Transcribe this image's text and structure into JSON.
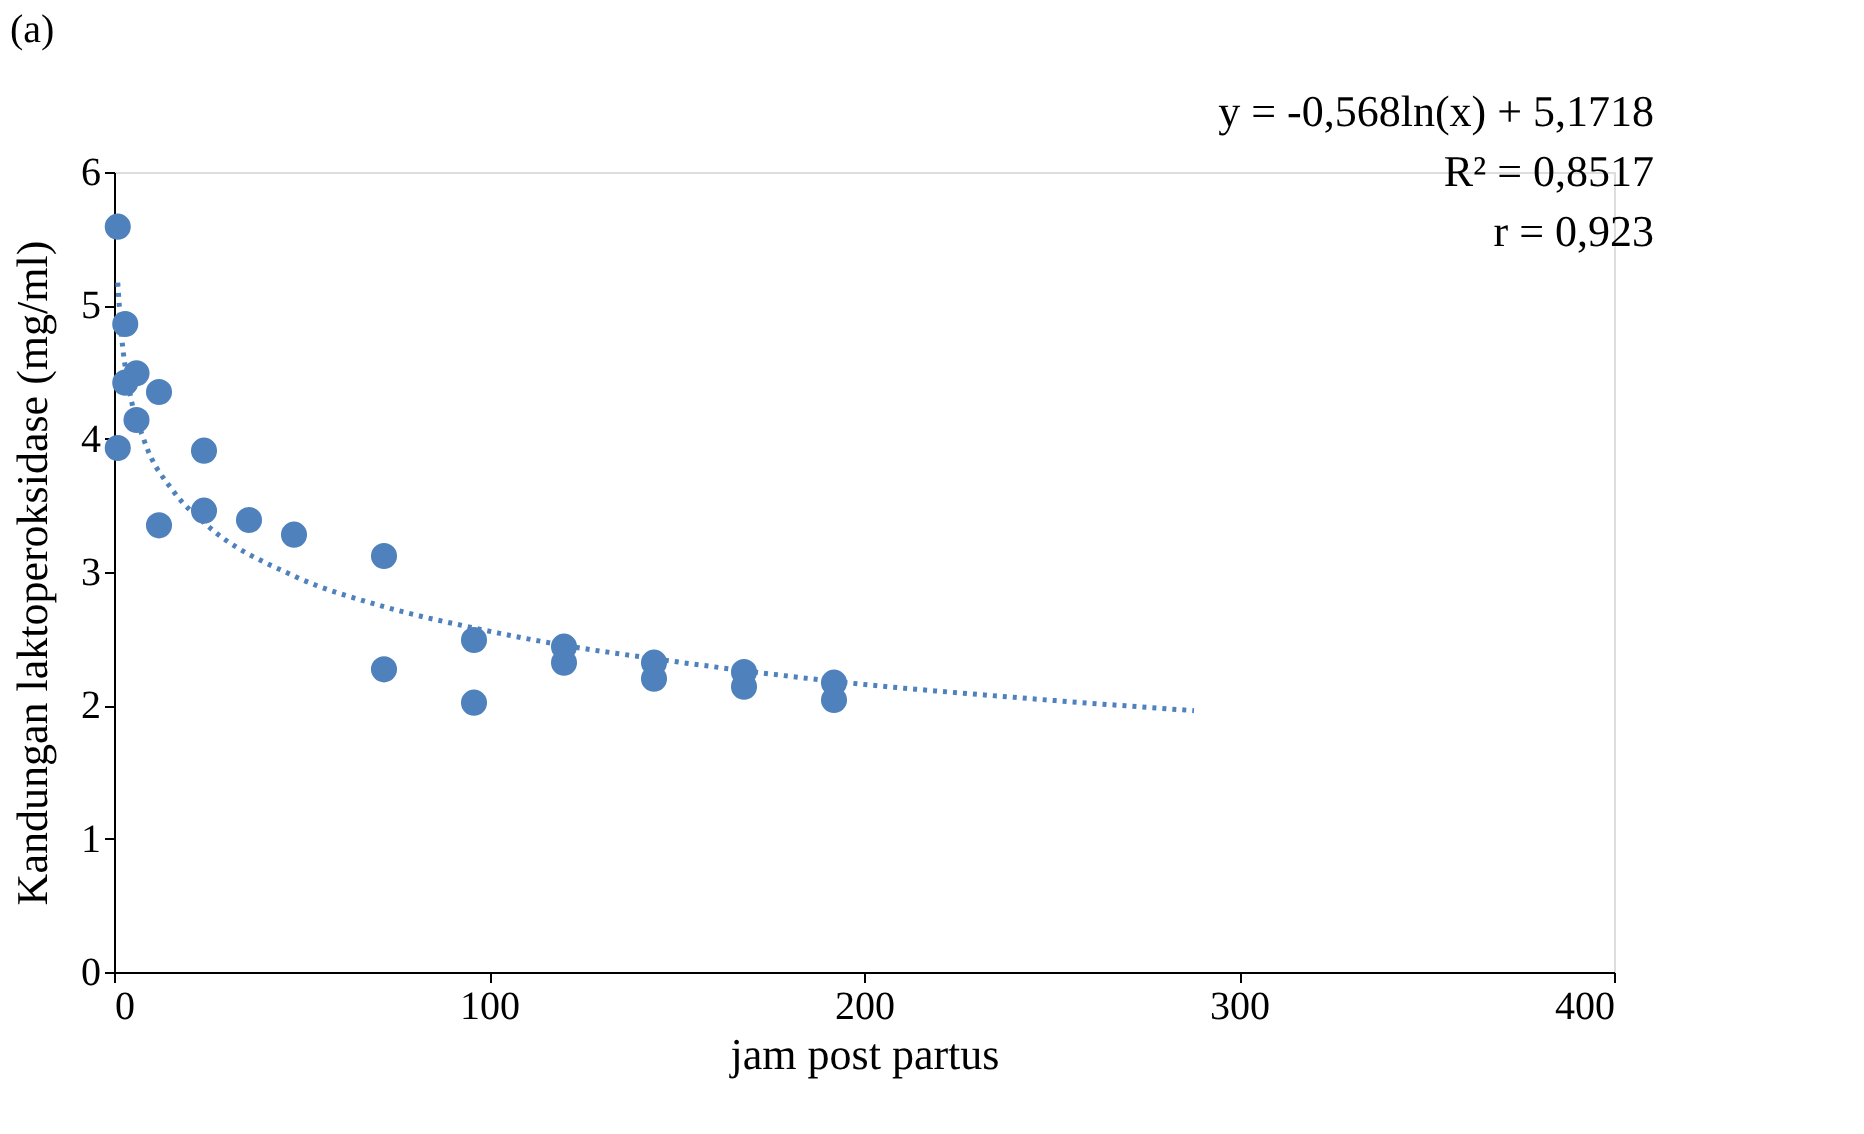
{
  "chart_data": {
    "type": "scatter",
    "title": "(a)",
    "xlabel": "jam post partus",
    "ylabel": "Kandungan laktoperoksidase (mg/ml)",
    "xlim": [
      0,
      400
    ],
    "xticks": [
      0,
      100,
      200,
      300,
      400
    ],
    "ylim": [
      0,
      6
    ],
    "yticks": [
      0,
      1,
      2,
      3,
      4,
      5,
      6
    ],
    "grid": false,
    "legend": false,
    "marker": "circle",
    "annotations": [
      "y = -0,568ln(x) + 5,1718",
      "R² = 0,8517",
      "r = 0,923"
    ],
    "series": [
      {
        "color": "#4f81bd",
        "x": [
          1,
          3,
          3,
          6,
          6,
          1,
          12,
          12,
          24,
          24,
          36,
          48,
          72,
          72,
          96,
          96,
          120,
          120,
          144,
          144,
          168,
          168,
          192,
          192
        ],
        "values": [
          5.59,
          4.86,
          4.42,
          4.49,
          4.14,
          3.93,
          4.35,
          3.35,
          3.91,
          3.46,
          3.39,
          3.28,
          3.12,
          2.27,
          2.49,
          2.02,
          2.44,
          2.32,
          2.32,
          2.2,
          2.25,
          2.14,
          2.17,
          2.04
        ]
      },
      {
        "type": "line",
        "color": "#4f81bd",
        "line_style": "dotted",
        "marker": "none",
        "x": [
          1,
          2,
          4,
          8,
          16,
          24,
          48,
          72,
          96,
          120,
          144,
          168,
          192,
          240,
          288
        ],
        "values": [
          5.17,
          4.78,
          4.38,
          3.99,
          3.6,
          3.37,
          2.97,
          2.74,
          2.58,
          2.45,
          2.35,
          2.26,
          2.18,
          2.06,
          1.96
        ]
      }
    ]
  }
}
